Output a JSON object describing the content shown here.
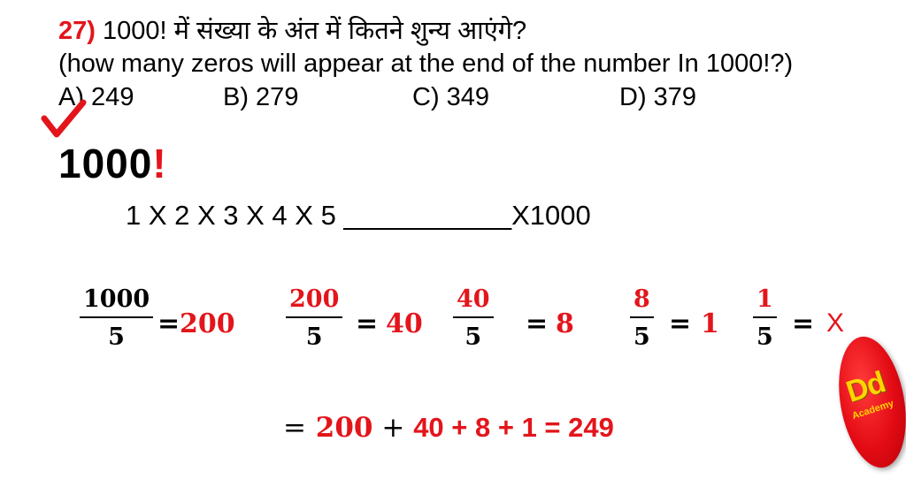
{
  "question": {
    "number": "27)",
    "hindi_text": "1000! में संख्या के अंत में कितने शुन्य आएंगे?",
    "english_text": "(how many zeros will appear at the end of the number In 1000!?)"
  },
  "options": [
    {
      "label": "A) 249"
    },
    {
      "label": "B) 279"
    },
    {
      "label": "C) 349"
    },
    {
      "label": "D) 379"
    }
  ],
  "heading": {
    "number": "1000",
    "bang": "!"
  },
  "product_line": "1 X 2 X 3 X 4 X 5 ___________X1000",
  "divisions": [
    {
      "num": "1000",
      "den": "5",
      "eq": "=",
      "result": "200"
    },
    {
      "num": "200",
      "den": "5",
      "eq": "=",
      "result": "40"
    },
    {
      "num": "40",
      "den": "5",
      "eq": "=",
      "result": "8"
    },
    {
      "num": "8",
      "den": "5",
      "eq": "=",
      "result": "1"
    },
    {
      "num": "1",
      "den": "5",
      "eq": "=",
      "result": "X"
    }
  ],
  "sum_line": {
    "eq": "=",
    "a": "200",
    "plus1": " + ",
    "rest": "40 + 8 + 1 = 249"
  },
  "logo": {
    "main": "Dd",
    "sub": "Academy"
  },
  "colors": {
    "accent": "#e3151b",
    "logo_text": "#ffd400"
  }
}
